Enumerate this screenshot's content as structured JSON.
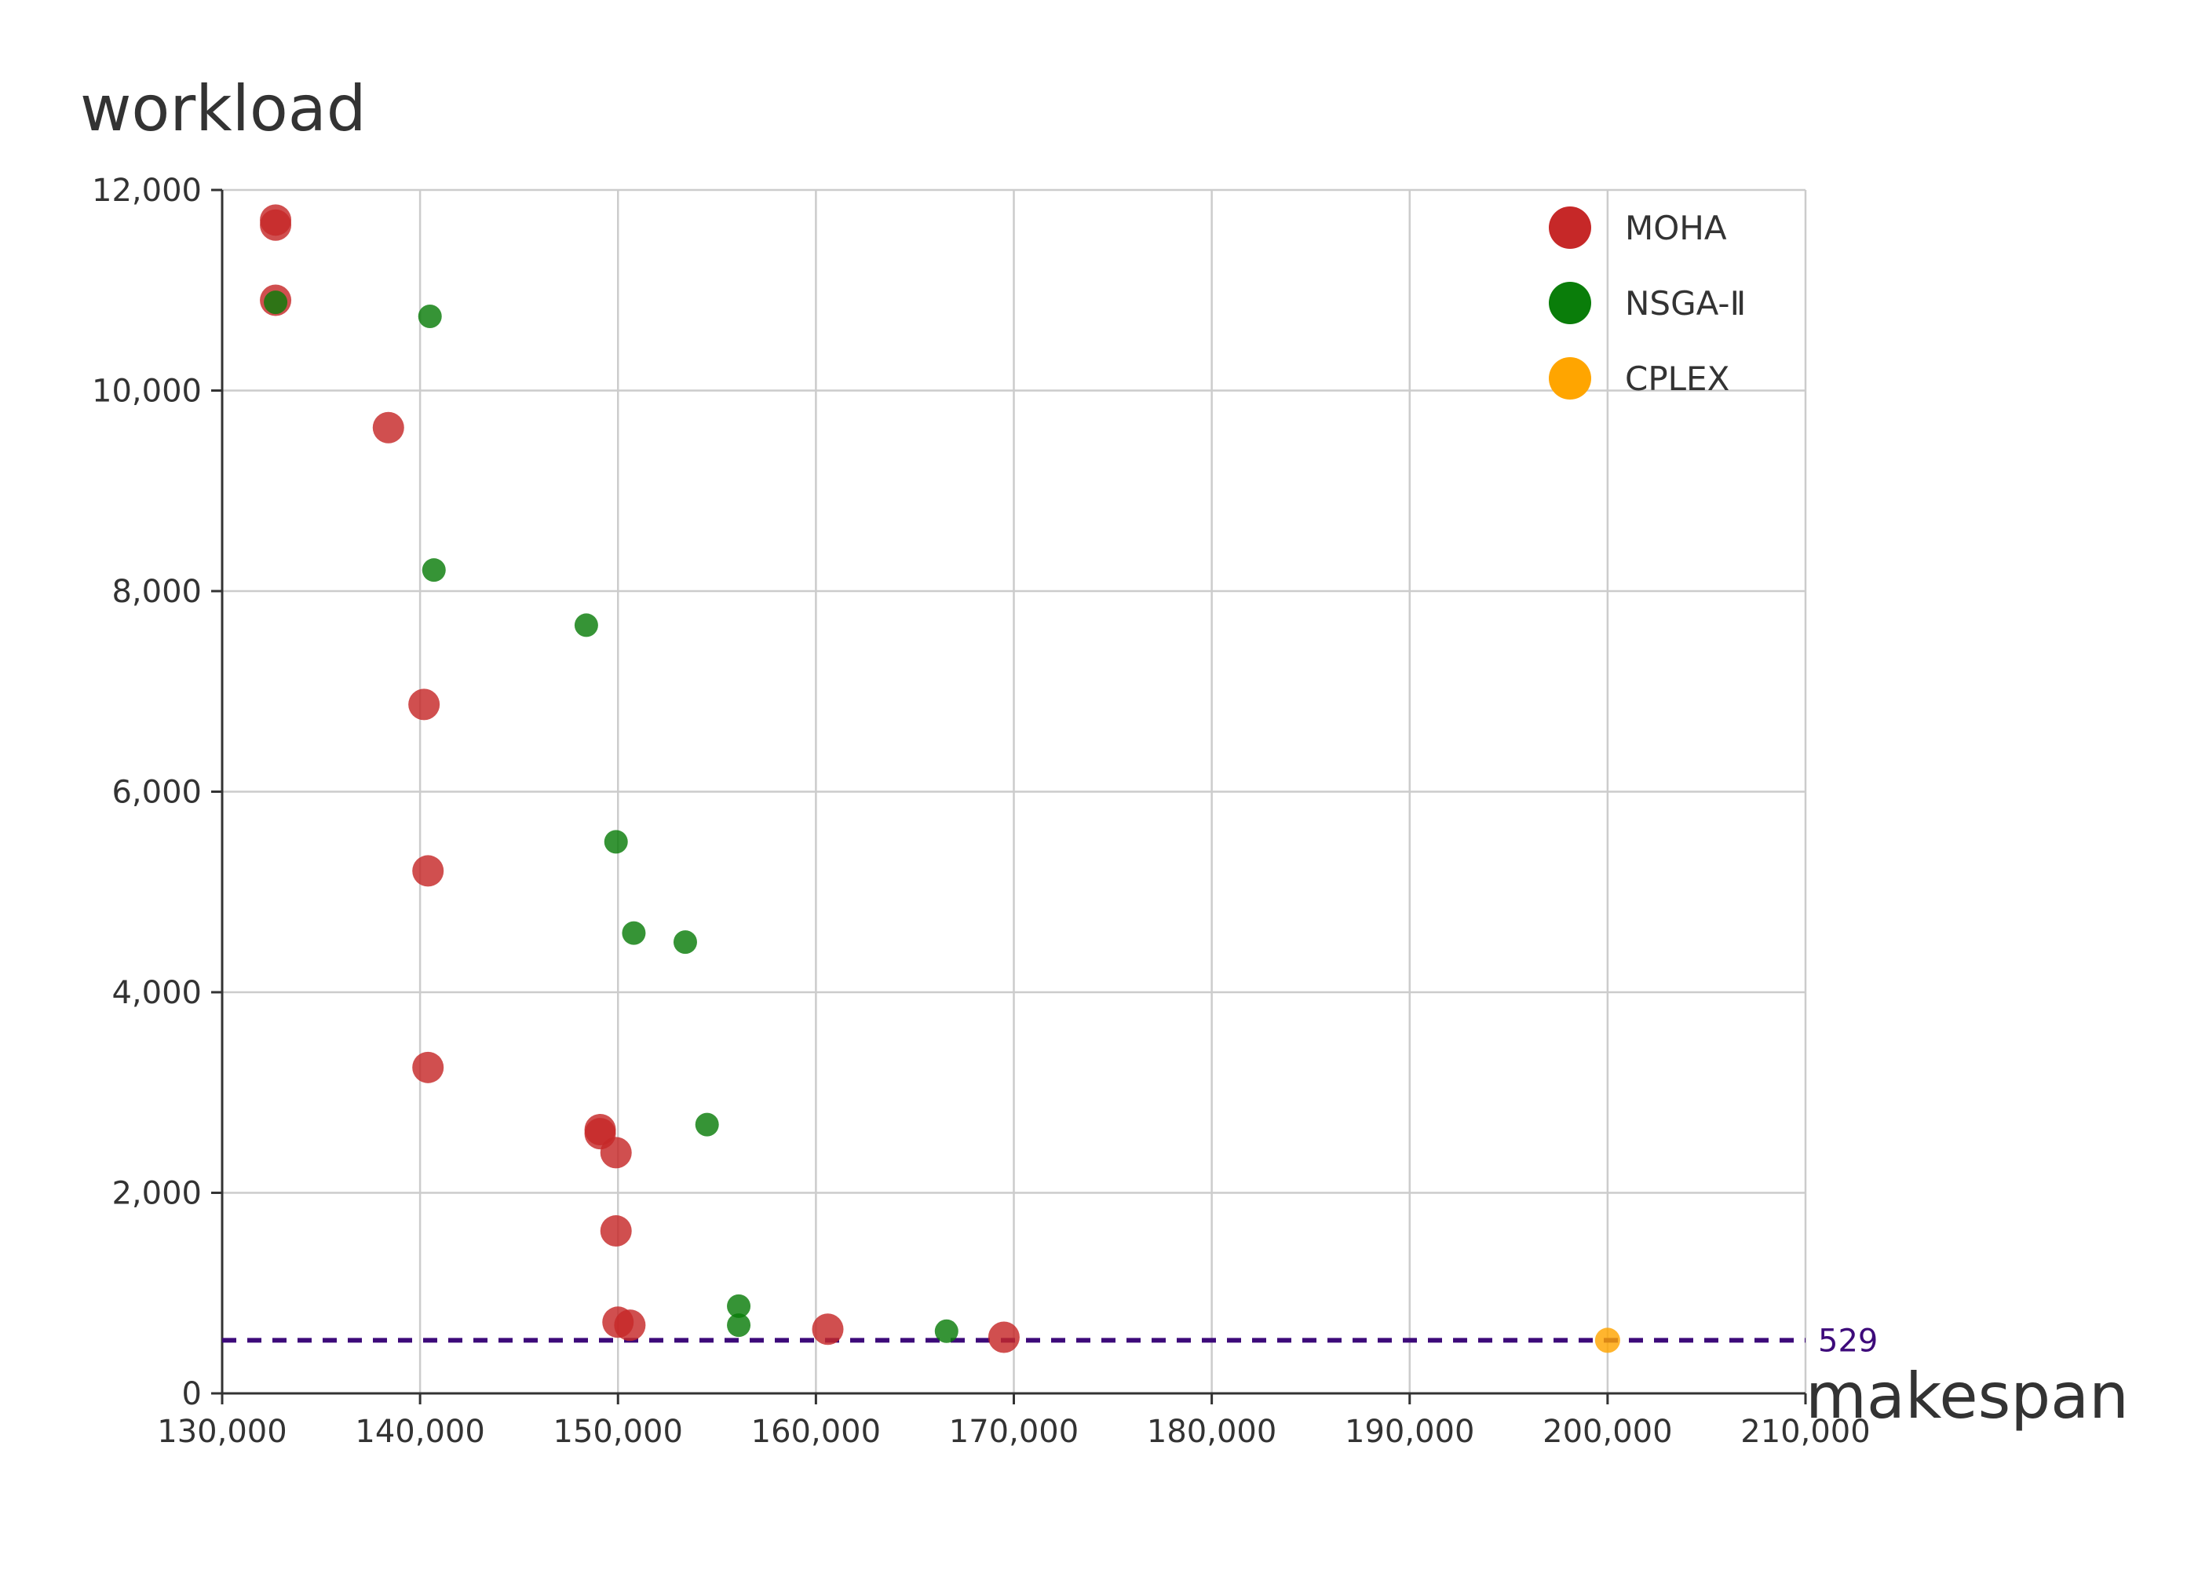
{
  "chart_data": {
    "type": "scatter",
    "title": "",
    "xlabel": "makespan",
    "ylabel": "workload",
    "xlim": [
      130000,
      210000
    ],
    "ylim": [
      0,
      12000
    ],
    "x_ticks": [
      "130,000",
      "140,000",
      "150,000",
      "160,000",
      "170,000",
      "180,000",
      "190,000",
      "200,000",
      "210,000"
    ],
    "y_ticks": [
      "0",
      "2,000",
      "4,000",
      "6,000",
      "8,000",
      "10,000",
      "12,000"
    ],
    "grid": true,
    "legend_position": "top-right",
    "reference_line": {
      "y": 529,
      "label": "529",
      "style": "dashed",
      "color": "#3d0a7a"
    },
    "series": [
      {
        "name": "MOHA",
        "color": "#c62828",
        "points": [
          [
            132700,
            11700
          ],
          [
            132700,
            11650
          ],
          [
            132700,
            10900
          ],
          [
            138400,
            9630
          ],
          [
            140200,
            6870
          ],
          [
            140400,
            5210
          ],
          [
            140400,
            3250
          ],
          [
            149100,
            2630
          ],
          [
            149100,
            2590
          ],
          [
            149900,
            2400
          ],
          [
            149900,
            1620
          ],
          [
            150000,
            710
          ],
          [
            150600,
            680
          ],
          [
            160600,
            640
          ],
          [
            169500,
            560
          ]
        ]
      },
      {
        "name": "NSGA-Ⅱ",
        "color": "#0a7d0a",
        "points": [
          [
            132700,
            10880
          ],
          [
            140500,
            10740
          ],
          [
            140700,
            8210
          ],
          [
            148400,
            7660
          ],
          [
            149900,
            5500
          ],
          [
            150800,
            4590
          ],
          [
            153400,
            4500
          ],
          [
            154500,
            2680
          ],
          [
            156100,
            870
          ],
          [
            156100,
            680
          ],
          [
            166600,
            620
          ]
        ]
      },
      {
        "name": "CPLEX",
        "color": "#ffa500",
        "points": [
          [
            200000,
            529
          ]
        ]
      }
    ]
  }
}
